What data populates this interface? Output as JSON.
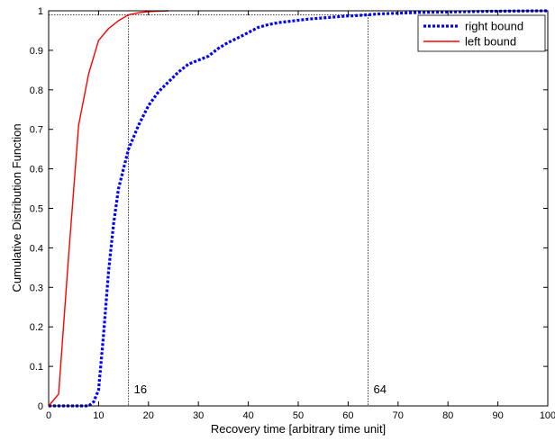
{
  "chart_data": {
    "type": "line",
    "xlabel": "Recovery time [arbitrary time unit]",
    "ylabel": "Cumulative Distribution Function",
    "xlim": [
      0,
      100
    ],
    "ylim": [
      0,
      1
    ],
    "x_ticks": [
      0,
      10,
      20,
      30,
      40,
      50,
      60,
      70,
      80,
      90,
      100
    ],
    "y_ticks": [
      0,
      0.1,
      0.2,
      0.3,
      0.4,
      0.5,
      0.6,
      0.7,
      0.8,
      0.9,
      1
    ],
    "grid": false,
    "legend_position": "top-right",
    "series": [
      {
        "name": "right bound",
        "color": "#0000ff",
        "style": "dotted",
        "x": [
          0,
          5,
          8,
          9,
          10,
          11,
          12,
          13,
          14,
          15,
          16,
          17,
          18,
          19,
          20,
          22,
          24,
          26,
          28,
          30,
          32,
          34,
          36,
          38,
          40,
          42,
          44,
          46,
          48,
          50,
          52,
          54,
          56,
          58,
          60,
          62,
          64,
          66,
          68,
          70,
          75,
          80,
          85,
          90,
          95,
          100
        ],
        "y": [
          0,
          0,
          0,
          0.01,
          0.04,
          0.18,
          0.34,
          0.46,
          0.55,
          0.6,
          0.65,
          0.68,
          0.71,
          0.735,
          0.76,
          0.795,
          0.82,
          0.845,
          0.865,
          0.875,
          0.885,
          0.905,
          0.92,
          0.932,
          0.945,
          0.958,
          0.965,
          0.97,
          0.973,
          0.976,
          0.979,
          0.981,
          0.983,
          0.985,
          0.987,
          0.988,
          0.99,
          0.992,
          0.993,
          0.994,
          0.996,
          0.997,
          0.998,
          0.999,
          0.9995,
          1
        ]
      },
      {
        "name": "left bound",
        "color": "#ff0000",
        "style": "solid",
        "x": [
          0,
          2,
          4,
          6,
          8,
          10,
          12,
          14,
          16,
          18,
          20,
          22,
          24
        ],
        "y": [
          0,
          0.03,
          0.38,
          0.71,
          0.84,
          0.925,
          0.955,
          0.975,
          0.99,
          0.995,
          0.998,
          0.999,
          1
        ]
      }
    ],
    "reference_lines": [
      {
        "x": 16,
        "y": 0.99,
        "label": "16"
      },
      {
        "x": 64,
        "y": 0.99,
        "label": "64"
      }
    ]
  }
}
